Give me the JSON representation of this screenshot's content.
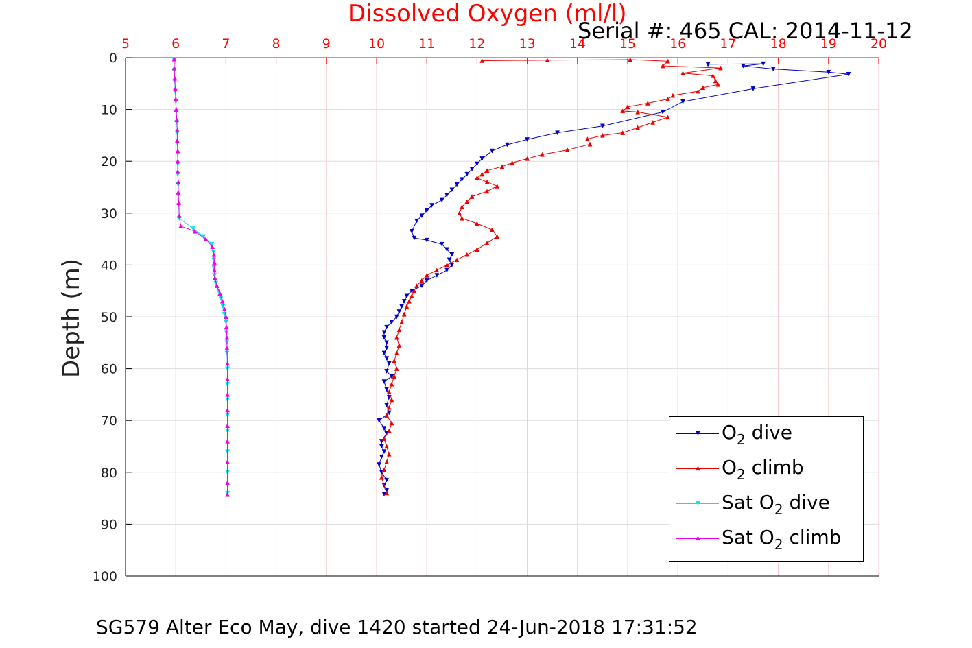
{
  "title": "Dissolved Oxygen (ml/l)",
  "serial_label": "Serial #: 465  CAL: 2014-11-12",
  "ylabel": "Depth (m)",
  "caption": "SG579 Alter Eco May, dive 1420 started 24-Jun-2018 17:31:52",
  "legend": [
    {
      "pre": "O",
      "sub": "2",
      "post": " dive"
    },
    {
      "pre": "O",
      "sub": "2",
      "post": " climb"
    },
    {
      "pre": "Sat O",
      "sub": "2",
      "post": " dive"
    },
    {
      "pre": "Sat O",
      "sub": "2",
      "post": " climb"
    }
  ],
  "colors": {
    "o2_dive": "#0000cc",
    "o2_climb": "#ee0000",
    "sat_dive": "#00e5e5",
    "sat_climb": "#ee00ee",
    "top_axis": "#ff0000",
    "grid_x": "#f4c6cc",
    "grid_y": "#dddddd"
  },
  "chart_data": {
    "type": "line",
    "title": "Dissolved Oxygen (ml/l)",
    "xlabel": "Dissolved Oxygen (ml/l)",
    "ylabel": "Depth (m)",
    "xlim": [
      5,
      20
    ],
    "ylim": [
      0,
      100
    ],
    "y_reversed": true,
    "x_axis_position": "top",
    "x_ticks": [
      5,
      6,
      7,
      8,
      9,
      10,
      11,
      12,
      13,
      14,
      15,
      16,
      17,
      18,
      19,
      20
    ],
    "y_ticks": [
      0,
      10,
      20,
      30,
      40,
      50,
      60,
      70,
      80,
      90,
      100
    ],
    "grid": true,
    "legend_position": "bottom-right",
    "series": [
      {
        "name": "O2 dive",
        "marker": "triangle-down",
        "x": [
          16.6,
          17.7,
          17.3,
          17.9,
          19.0,
          19.4,
          17.5,
          16.1,
          15.7,
          14.5,
          13.6,
          13.0,
          12.6,
          12.3,
          12.1,
          12.0,
          11.9,
          11.8,
          11.7,
          11.6,
          11.5,
          11.4,
          11.3,
          11.1,
          11.0,
          10.9,
          10.8,
          10.7,
          10.75,
          11.0,
          11.3,
          11.4,
          11.5,
          11.45,
          11.5,
          11.4,
          11.2,
          11.0,
          10.9,
          10.7,
          10.6,
          10.55,
          10.5,
          10.45,
          10.4,
          10.3,
          10.2,
          10.15,
          10.15,
          10.2,
          10.2,
          10.15,
          10.2,
          10.25,
          10.2,
          10.3,
          10.15,
          10.2,
          10.25,
          10.2,
          10.25,
          10.05,
          10.15,
          10.2,
          10.1,
          10.1,
          10.15,
          10.1,
          10.05,
          10.1,
          10.2,
          10.15,
          10.2,
          10.15
        ],
        "y": [
          1.3,
          1.2,
          1.6,
          2.2,
          2.8,
          3.2,
          6.0,
          8.5,
          10.5,
          13.2,
          14.5,
          15.8,
          16.8,
          18.0,
          19.5,
          20.5,
          21.5,
          22.5,
          23.5,
          24.5,
          25.5,
          26.5,
          27.5,
          28.5,
          29.5,
          30.5,
          31.5,
          33.5,
          34.8,
          35.2,
          36.0,
          37.0,
          38.0,
          39.0,
          40.0,
          41.0,
          42.0,
          43.0,
          44.0,
          45.0,
          46.0,
          47.0,
          48.0,
          49.0,
          50.0,
          51.0,
          52.0,
          53.0,
          54.0,
          55.0,
          56.0,
          57.0,
          58.0,
          59.0,
          60.5,
          61.5,
          62.5,
          64.0,
          65.5,
          67.0,
          68.5,
          70.0,
          71.5,
          72.5,
          74.0,
          75.0,
          76.0,
          77.0,
          78.5,
          80.0,
          81.5,
          82.5,
          83.5,
          84.2
        ]
      },
      {
        "name": "O2 climb",
        "marker": "triangle-up",
        "x": [
          12.1,
          13.4,
          15.05,
          15.8,
          15.7,
          16.85,
          16.1,
          16.7,
          16.75,
          16.8,
          16.5,
          16.4,
          15.9,
          15.8,
          15.4,
          15.0,
          14.9,
          15.2,
          15.8,
          15.5,
          15.2,
          14.9,
          14.5,
          14.2,
          14.25,
          13.8,
          13.3,
          13.0,
          12.7,
          12.5,
          12.2,
          12.1,
          12.0,
          12.2,
          12.4,
          12.2,
          11.9,
          11.8,
          11.7,
          11.65,
          11.7,
          12.0,
          12.3,
          12.4,
          12.2,
          12.0,
          11.8,
          11.6,
          11.4,
          11.2,
          11.0,
          10.9,
          10.8,
          10.75,
          10.7,
          10.65,
          10.6,
          10.55,
          10.5,
          10.45,
          10.4,
          10.45,
          10.4,
          10.35,
          10.4,
          10.35,
          10.3,
          10.25,
          10.3,
          10.25,
          10.2,
          10.3,
          10.25,
          10.15,
          10.2,
          10.25,
          10.2,
          10.15,
          10.1,
          10.2
        ],
        "y": [
          0.6,
          0.5,
          0.4,
          0.7,
          1.6,
          2.0,
          3.0,
          3.5,
          4.5,
          5.2,
          5.8,
          6.5,
          7.3,
          8.0,
          8.8,
          9.5,
          10.3,
          10.5,
          11.5,
          12.5,
          13.5,
          14.5,
          15.0,
          15.7,
          16.7,
          17.8,
          18.7,
          19.5,
          20.3,
          21.0,
          21.8,
          22.5,
          23.2,
          24.0,
          24.8,
          25.8,
          26.8,
          27.8,
          28.8,
          30.0,
          31.0,
          32.0,
          33.2,
          34.5,
          35.8,
          37.0,
          38.0,
          39.0,
          40.0,
          41.0,
          42.0,
          43.0,
          44.0,
          45.0,
          46.0,
          47.0,
          48.0,
          49.5,
          51.0,
          52.5,
          54.0,
          55.5,
          57.0,
          58.5,
          60.0,
          61.5,
          63.0,
          64.5,
          66.0,
          67.5,
          69.0,
          70.5,
          72.0,
          73.5,
          75.0,
          76.5,
          78.0,
          79.5,
          81.0,
          84.0
        ]
      },
      {
        "name": "Sat O2 dive",
        "marker": "triangle-down",
        "x": [
          5.97,
          5.97,
          5.98,
          5.99,
          6.0,
          6.01,
          6.02,
          6.03,
          6.03,
          6.04,
          6.04,
          6.04,
          6.05,
          6.05,
          6.06,
          6.07,
          6.35,
          6.55,
          6.72,
          6.75,
          6.76,
          6.76,
          6.77,
          6.8,
          6.85,
          6.9,
          6.94,
          6.97,
          7.0,
          7.01,
          7.02,
          7.02,
          7.03,
          7.03,
          7.03,
          7.03,
          7.03,
          7.03,
          7.03,
          7.03
        ],
        "y": [
          0.5,
          2.5,
          4.5,
          6.5,
          8.5,
          10.5,
          12.5,
          14.5,
          16.5,
          18.5,
          20.5,
          22.5,
          24.5,
          26.5,
          28.5,
          31.0,
          33.0,
          34.5,
          36.0,
          37.5,
          39.0,
          40.5,
          42.0,
          43.5,
          45.0,
          46.5,
          48.0,
          49.5,
          51.0,
          53.0,
          55.0,
          57.0,
          60.0,
          63.0,
          66.0,
          69.0,
          72.0,
          76.0,
          80.0,
          84.0
        ]
      },
      {
        "name": "Sat O2 climb",
        "marker": "triangle-up",
        "x": [
          5.97,
          5.97,
          5.98,
          5.99,
          6.0,
          6.01,
          6.02,
          6.03,
          6.03,
          6.04,
          6.04,
          6.04,
          6.05,
          6.05,
          6.06,
          6.07,
          6.1,
          6.38,
          6.6,
          6.73,
          6.76,
          6.77,
          6.77,
          6.78,
          6.82,
          6.88,
          6.93,
          6.97,
          7.0,
          7.01,
          7.02,
          7.02,
          7.03,
          7.03,
          7.03,
          7.03,
          7.03,
          7.03,
          7.03,
          7.03,
          7.03
        ],
        "y": [
          0.3,
          2.0,
          4.0,
          6.0,
          8.0,
          10.0,
          12.0,
          14.0,
          16.0,
          18.0,
          20.0,
          22.0,
          24.0,
          26.0,
          28.0,
          30.5,
          32.5,
          33.5,
          35.0,
          36.5,
          38.0,
          39.5,
          41.0,
          42.5,
          44.0,
          45.5,
          47.0,
          48.5,
          50.0,
          52.0,
          54.0,
          56.0,
          59.0,
          62.0,
          65.0,
          68.0,
          71.0,
          74.0,
          78.0,
          82.0,
          84.3
        ]
      }
    ]
  }
}
